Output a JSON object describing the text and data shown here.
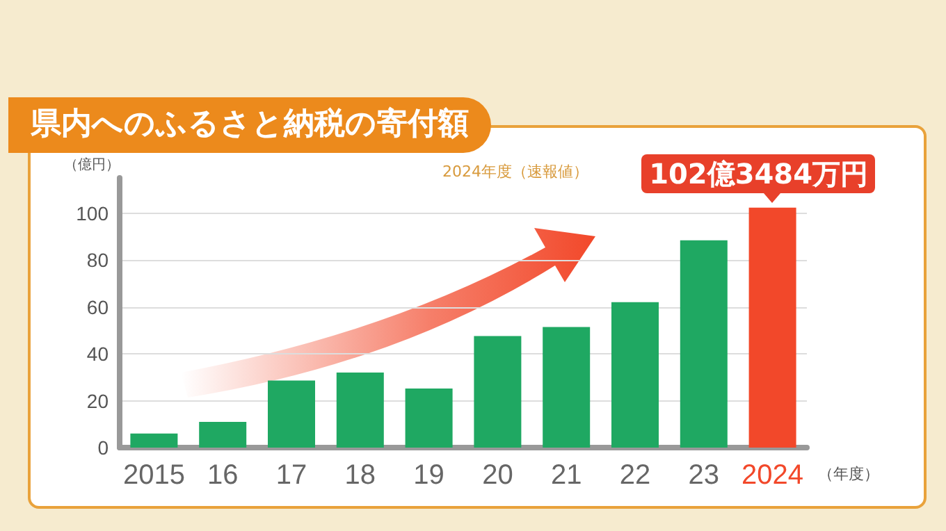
{
  "chart_data": {
    "type": "bar",
    "title": "県内へのふるさと納税の寄付額",
    "subtitle": "2024年度（速報値）",
    "ylabel": "（億円）",
    "xlabel": "（年度）",
    "categories": [
      "2015",
      "16",
      "17",
      "18",
      "19",
      "20",
      "21",
      "22",
      "23",
      "2024"
    ],
    "values": [
      6,
      11,
      28.6,
      32,
      25.2,
      47.6,
      51.4,
      62,
      88.4,
      102.3484
    ],
    "colors": [
      "#1fa862",
      "#1fa862",
      "#1fa862",
      "#1fa862",
      "#1fa862",
      "#1fa862",
      "#1fa862",
      "#1fa862",
      "#1fa862",
      "#f2482a"
    ],
    "ylim": [
      0,
      115
    ],
    "yticks": [
      0,
      20,
      40,
      60,
      80,
      100
    ],
    "grid": "y",
    "annotations": [
      {
        "text": "102億3484万円",
        "x": "2024",
        "y": 102.3484
      }
    ]
  }
}
